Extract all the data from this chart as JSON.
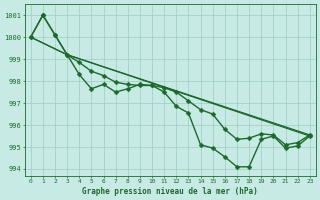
{
  "xlabel": "Graphe pression niveau de la mer (hPa)",
  "background_color": "#c8eae4",
  "grid_color": "#9dccc4",
  "line_color": "#1a6b2a",
  "xlim": [
    -0.5,
    23.5
  ],
  "ylim": [
    993.7,
    1001.5
  ],
  "yticks": [
    994,
    995,
    996,
    997,
    998,
    999,
    1000,
    1001
  ],
  "xticks": [
    0,
    1,
    2,
    3,
    4,
    5,
    6,
    7,
    8,
    9,
    10,
    11,
    12,
    13,
    14,
    15,
    16,
    17,
    18,
    19,
    20,
    21,
    22,
    23
  ],
  "series": [
    {
      "x": [
        0,
        1,
        2,
        3,
        4,
        5,
        6,
        7,
        8,
        9,
        10,
        11,
        12,
        13,
        14,
        15,
        16,
        17,
        18,
        19,
        20,
        21,
        22,
        23
      ],
      "y": [
        1000.0,
        1001.0,
        1000.1,
        999.2,
        998.3,
        997.65,
        997.85,
        997.5,
        997.65,
        997.85,
        997.8,
        997.5,
        996.85,
        996.55,
        995.1,
        994.95,
        994.55,
        994.1,
        994.1,
        995.35,
        995.5,
        994.95,
        995.05,
        995.5
      ],
      "marker": "D",
      "markersize": 2.5,
      "linewidth": 1.0
    },
    {
      "x": [
        0,
        3,
        23
      ],
      "y": [
        1000.0,
        999.2,
        995.5
      ],
      "marker": null,
      "markersize": 0,
      "linewidth": 0.9
    },
    {
      "x": [
        0,
        3,
        23
      ],
      "y": [
        1000.0,
        999.2,
        995.55
      ],
      "marker": null,
      "markersize": 0,
      "linewidth": 0.9
    },
    {
      "x": [
        0,
        1,
        2,
        3,
        4,
        5,
        6,
        7,
        8,
        9,
        10,
        11,
        12,
        13,
        14,
        15,
        16,
        17,
        18,
        19,
        20,
        21,
        22,
        23
      ],
      "y": [
        1000.0,
        1001.0,
        1000.1,
        999.2,
        998.85,
        998.45,
        998.25,
        997.95,
        997.85,
        997.8,
        997.8,
        997.7,
        997.5,
        997.1,
        996.7,
        996.5,
        995.8,
        995.35,
        995.4,
        995.6,
        995.55,
        995.1,
        995.2,
        995.55
      ],
      "marker": "D",
      "markersize": 2.5,
      "linewidth": 1.0
    }
  ]
}
